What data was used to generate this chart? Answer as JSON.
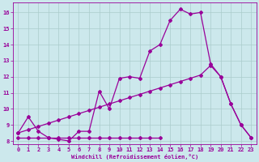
{
  "xlabel": "Windchill (Refroidissement éolien,°C)",
  "background_color": "#cce8ec",
  "grid_color": "#aacccc",
  "line_color": "#990099",
  "xlim": [
    -0.5,
    23.5
  ],
  "ylim": [
    7.8,
    16.6
  ],
  "xticks": [
    0,
    1,
    2,
    3,
    4,
    5,
    6,
    7,
    8,
    9,
    10,
    11,
    12,
    13,
    14,
    15,
    16,
    17,
    18,
    19,
    20,
    21,
    22,
    23
  ],
  "yticks": [
    8,
    9,
    10,
    11,
    12,
    13,
    14,
    15,
    16
  ],
  "line1_x": [
    0,
    1,
    2,
    3,
    4,
    5,
    6,
    7,
    8,
    9,
    10,
    11,
    12,
    13,
    14,
    15,
    16,
    17,
    18,
    19,
    20,
    21,
    22,
    23
  ],
  "line1_y": [
    8.5,
    9.5,
    8.6,
    8.2,
    8.1,
    8.0,
    8.6,
    8.6,
    11.1,
    10.0,
    11.9,
    12.0,
    11.9,
    13.6,
    14.0,
    15.5,
    16.2,
    15.9,
    16.0,
    12.8,
    12.0,
    10.3,
    9.0,
    8.2
  ],
  "line2_x": [
    0,
    1,
    2,
    3,
    4,
    5,
    6,
    7,
    8,
    9,
    10,
    11,
    12,
    13,
    14,
    15,
    16,
    17,
    18,
    19,
    20,
    21,
    22,
    23
  ],
  "line2_y": [
    8.5,
    8.7,
    8.9,
    9.1,
    9.3,
    9.5,
    9.7,
    9.9,
    10.1,
    10.3,
    10.5,
    10.7,
    10.9,
    11.1,
    11.3,
    11.5,
    11.7,
    11.9,
    12.1,
    12.7,
    12.0,
    10.3,
    9.0,
    8.2
  ],
  "line3_x": [
    0,
    1,
    2,
    3,
    4,
    5,
    6,
    7,
    8,
    9,
    10,
    11,
    12,
    13,
    14
  ],
  "line3_y": [
    8.2,
    8.2,
    8.2,
    8.2,
    8.2,
    8.2,
    8.2,
    8.2,
    8.2,
    8.2,
    8.2,
    8.2,
    8.2,
    8.2,
    8.2
  ]
}
